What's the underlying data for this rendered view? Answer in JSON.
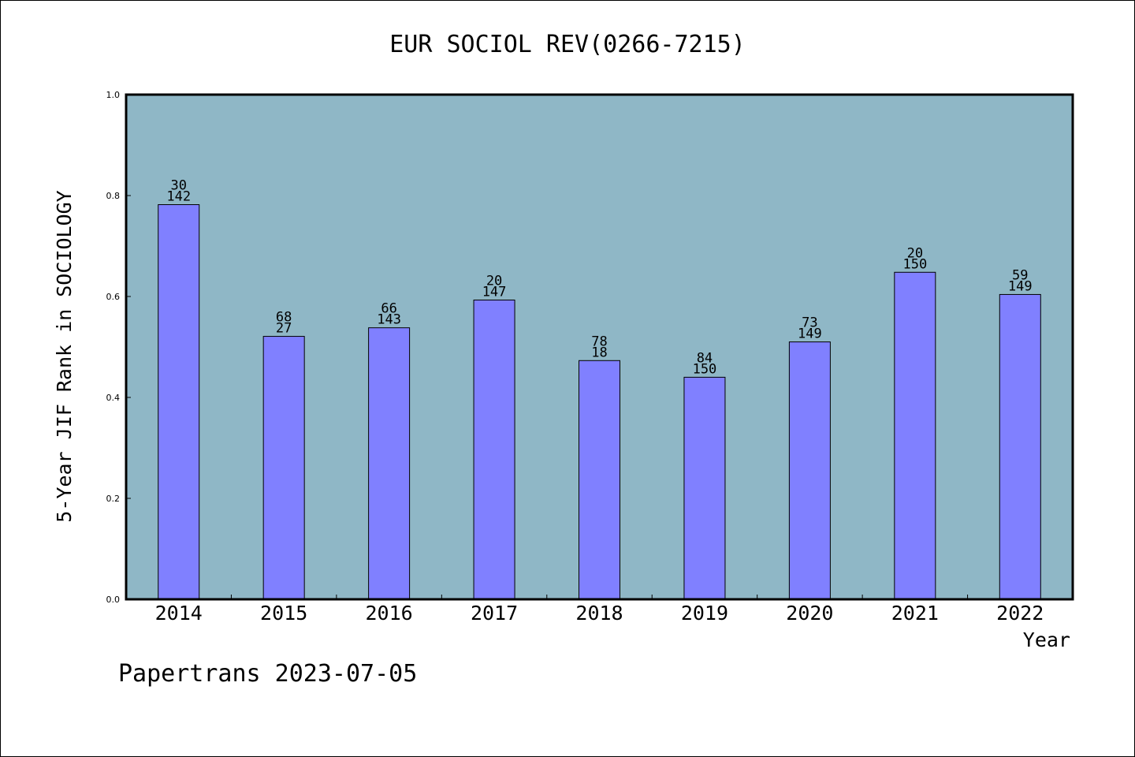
{
  "chart_data": {
    "type": "bar",
    "title": "EUR SOCIOL REV(0266-7215)",
    "ylabel": "5-Year JIF Rank in SOCIOLOGY",
    "xlabel": "Year",
    "ylim": [
      0,
      1.0
    ],
    "yticks": [
      "0.0",
      "0.2",
      "0.4",
      "0.6",
      "0.8",
      "1.0"
    ],
    "categories": [
      "2014",
      "2015",
      "2016",
      "2017",
      "2018",
      "2019",
      "2020",
      "2021",
      "2022"
    ],
    "values": [
      0.782,
      0.521,
      0.538,
      0.593,
      0.473,
      0.44,
      0.51,
      0.648,
      0.604
    ],
    "label_top": [
      "30",
      "68",
      "66",
      "20",
      "78",
      "84",
      "73",
      "20",
      "59"
    ],
    "label_bottom": [
      "142",
      "27",
      "143",
      "147",
      "18",
      "150",
      "149",
      "150",
      "149"
    ],
    "grid": false,
    "colors": {
      "plot_background": "#8fb7c6",
      "bar_fill": "#8080ff",
      "bar_stroke": "#000000"
    }
  },
  "footer": {
    "text": "Papertrans 2023-07-05"
  }
}
